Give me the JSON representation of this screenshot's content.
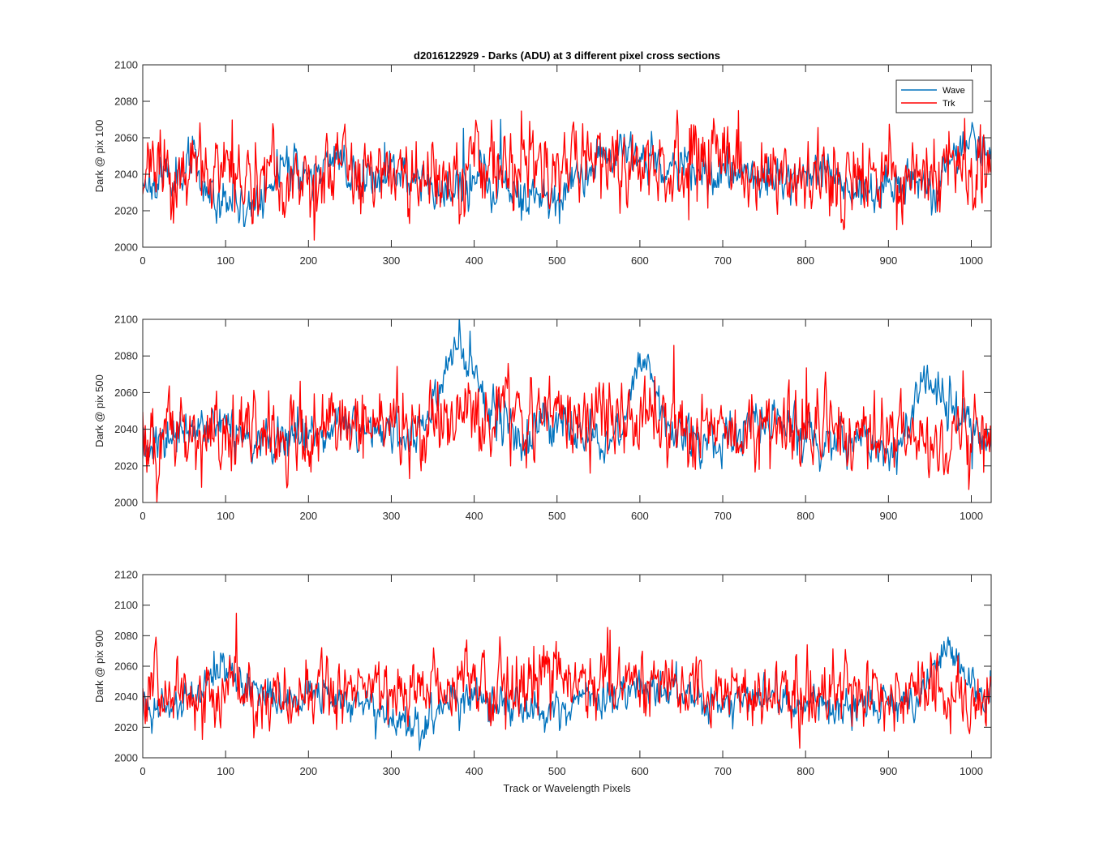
{
  "chart_data": [
    {
      "type": "line",
      "title": "d2016122929 - Darks (ADU) at 3 different pixel cross sections",
      "xlabel": "",
      "ylabel": "Dark @ pix 100",
      "xlim": [
        0,
        1024
      ],
      "ylim": [
        2000,
        2100
      ],
      "xticks": [
        0,
        100,
        200,
        300,
        400,
        500,
        600,
        700,
        800,
        900,
        1000
      ],
      "yticks": [
        2000,
        2020,
        2040,
        2060,
        2080,
        2100
      ],
      "legend": "top-right",
      "series": [
        {
          "name": "Wave",
          "color": "#0072BD",
          "anchors": [
            [
              0,
              2037
            ],
            [
              20,
              2036
            ],
            [
              40,
              2042
            ],
            [
              60,
              2047
            ],
            [
              80,
              2032
            ],
            [
              100,
              2025
            ],
            [
              120,
              2022
            ],
            [
              140,
              2024
            ],
            [
              160,
              2040
            ],
            [
              180,
              2048
            ],
            [
              200,
              2036
            ],
            [
              220,
              2045
            ],
            [
              240,
              2048
            ],
            [
              260,
              2036
            ],
            [
              280,
              2036
            ],
            [
              300,
              2040
            ],
            [
              320,
              2042
            ],
            [
              340,
              2036
            ],
            [
              360,
              2028
            ],
            [
              380,
              2030
            ],
            [
              400,
              2036
            ],
            [
              420,
              2034
            ],
            [
              440,
              2038
            ],
            [
              460,
              2030
            ],
            [
              480,
              2024
            ],
            [
              500,
              2026
            ],
            [
              520,
              2036
            ],
            [
              540,
              2044
            ],
            [
              560,
              2054
            ],
            [
              580,
              2056
            ],
            [
              600,
              2048
            ],
            [
              620,
              2046
            ],
            [
              640,
              2044
            ],
            [
              660,
              2044
            ],
            [
              680,
              2042
            ],
            [
              700,
              2038
            ],
            [
              720,
              2042
            ],
            [
              740,
              2036
            ],
            [
              760,
              2034
            ],
            [
              780,
              2038
            ],
            [
              800,
              2040
            ],
            [
              820,
              2040
            ],
            [
              840,
              2036
            ],
            [
              860,
              2032
            ],
            [
              880,
              2030
            ],
            [
              900,
              2032
            ],
            [
              920,
              2036
            ],
            [
              940,
              2034
            ],
            [
              960,
              2036
            ],
            [
              980,
              2048
            ],
            [
              1000,
              2056
            ],
            [
              1010,
              2052
            ],
            [
              1024,
              2046
            ]
          ],
          "amplitude": 6,
          "seed": 11
        },
        {
          "name": "Trk",
          "color": "#FF0000",
          "anchors": [
            [
              0,
              2040
            ],
            [
              100,
              2040
            ],
            [
              200,
              2040
            ],
            [
              300,
              2042
            ],
            [
              400,
              2044
            ],
            [
              500,
              2046
            ],
            [
              600,
              2046
            ],
            [
              700,
              2042
            ],
            [
              800,
              2040
            ],
            [
              900,
              2038
            ],
            [
              1024,
              2036
            ]
          ],
          "amplitude": 11,
          "seed": 23
        }
      ]
    },
    {
      "type": "line",
      "title": "",
      "xlabel": "",
      "ylabel": "Dark @ pix 500",
      "xlim": [
        0,
        1024
      ],
      "ylim": [
        2000,
        2100
      ],
      "xticks": [
        0,
        100,
        200,
        300,
        400,
        500,
        600,
        700,
        800,
        900,
        1000
      ],
      "yticks": [
        2000,
        2020,
        2040,
        2060,
        2080,
        2100
      ],
      "series": [
        {
          "name": "Wave",
          "color": "#0072BD",
          "anchors": [
            [
              0,
              2030
            ],
            [
              40,
              2036
            ],
            [
              80,
              2045
            ],
            [
              120,
              2036
            ],
            [
              160,
              2034
            ],
            [
              200,
              2035
            ],
            [
              240,
              2042
            ],
            [
              280,
              2040
            ],
            [
              320,
              2036
            ],
            [
              340,
              2040
            ],
            [
              360,
              2070
            ],
            [
              375,
              2086
            ],
            [
              390,
              2082
            ],
            [
              410,
              2056
            ],
            [
              430,
              2044
            ],
            [
              460,
              2036
            ],
            [
              480,
              2042
            ],
            [
              500,
              2046
            ],
            [
              520,
              2040
            ],
            [
              540,
              2034
            ],
            [
              560,
              2030
            ],
            [
              580,
              2046
            ],
            [
              600,
              2080
            ],
            [
              615,
              2070
            ],
            [
              630,
              2040
            ],
            [
              660,
              2034
            ],
            [
              700,
              2036
            ],
            [
              720,
              2040
            ],
            [
              740,
              2048
            ],
            [
              760,
              2044
            ],
            [
              780,
              2040
            ],
            [
              800,
              2034
            ],
            [
              830,
              2034
            ],
            [
              860,
              2036
            ],
            [
              890,
              2032
            ],
            [
              910,
              2030
            ],
            [
              930,
              2050
            ],
            [
              950,
              2064
            ],
            [
              970,
              2056
            ],
            [
              990,
              2044
            ],
            [
              1010,
              2036
            ],
            [
              1024,
              2032
            ]
          ],
          "amplitude": 6,
          "seed": 37
        },
        {
          "name": "Trk",
          "color": "#FF0000",
          "anchors": [
            [
              0,
              2036
            ],
            [
              100,
              2038
            ],
            [
              200,
              2038
            ],
            [
              300,
              2042
            ],
            [
              400,
              2046
            ],
            [
              500,
              2048
            ],
            [
              600,
              2048
            ],
            [
              700,
              2042
            ],
            [
              800,
              2040
            ],
            [
              900,
              2038
            ],
            [
              1024,
              2038
            ]
          ],
          "amplitude": 11,
          "seed": 51
        }
      ]
    },
    {
      "type": "line",
      "title": "",
      "xlabel": "Track or Wavelength Pixels",
      "ylabel": "Dark @ pix 900",
      "xlim": [
        0,
        1024
      ],
      "ylim": [
        2000,
        2120
      ],
      "xticks": [
        0,
        100,
        200,
        300,
        400,
        500,
        600,
        700,
        800,
        900,
        1000
      ],
      "yticks": [
        2000,
        2020,
        2040,
        2060,
        2080,
        2100,
        2120
      ],
      "series": [
        {
          "name": "Wave",
          "color": "#0072BD",
          "anchors": [
            [
              0,
              2030
            ],
            [
              30,
              2034
            ],
            [
              60,
              2040
            ],
            [
              80,
              2050
            ],
            [
              95,
              2062
            ],
            [
              110,
              2050
            ],
            [
              140,
              2040
            ],
            [
              180,
              2036
            ],
            [
              220,
              2038
            ],
            [
              260,
              2036
            ],
            [
              300,
              2026
            ],
            [
              320,
              2018
            ],
            [
              340,
              2022
            ],
            [
              360,
              2030
            ],
            [
              380,
              2036
            ],
            [
              420,
              2036
            ],
            [
              460,
              2034
            ],
            [
              500,
              2036
            ],
            [
              540,
              2038
            ],
            [
              580,
              2040
            ],
            [
              600,
              2046
            ],
            [
              620,
              2042
            ],
            [
              660,
              2038
            ],
            [
              700,
              2036
            ],
            [
              740,
              2038
            ],
            [
              780,
              2038
            ],
            [
              820,
              2036
            ],
            [
              860,
              2034
            ],
            [
              900,
              2036
            ],
            [
              930,
              2034
            ],
            [
              950,
              2050
            ],
            [
              970,
              2074
            ],
            [
              985,
              2058
            ],
            [
              1000,
              2044
            ],
            [
              1024,
              2038
            ]
          ],
          "amplitude": 6,
          "seed": 67
        },
        {
          "name": "Trk",
          "color": "#FF0000",
          "anchors": [
            [
              0,
              2040
            ],
            [
              100,
              2042
            ],
            [
              200,
              2042
            ],
            [
              300,
              2044
            ],
            [
              400,
              2050
            ],
            [
              500,
              2054
            ],
            [
              600,
              2050
            ],
            [
              700,
              2044
            ],
            [
              800,
              2042
            ],
            [
              900,
              2040
            ],
            [
              1024,
              2040
            ]
          ],
          "amplitude": 11,
          "seed": 83
        }
      ]
    }
  ]
}
